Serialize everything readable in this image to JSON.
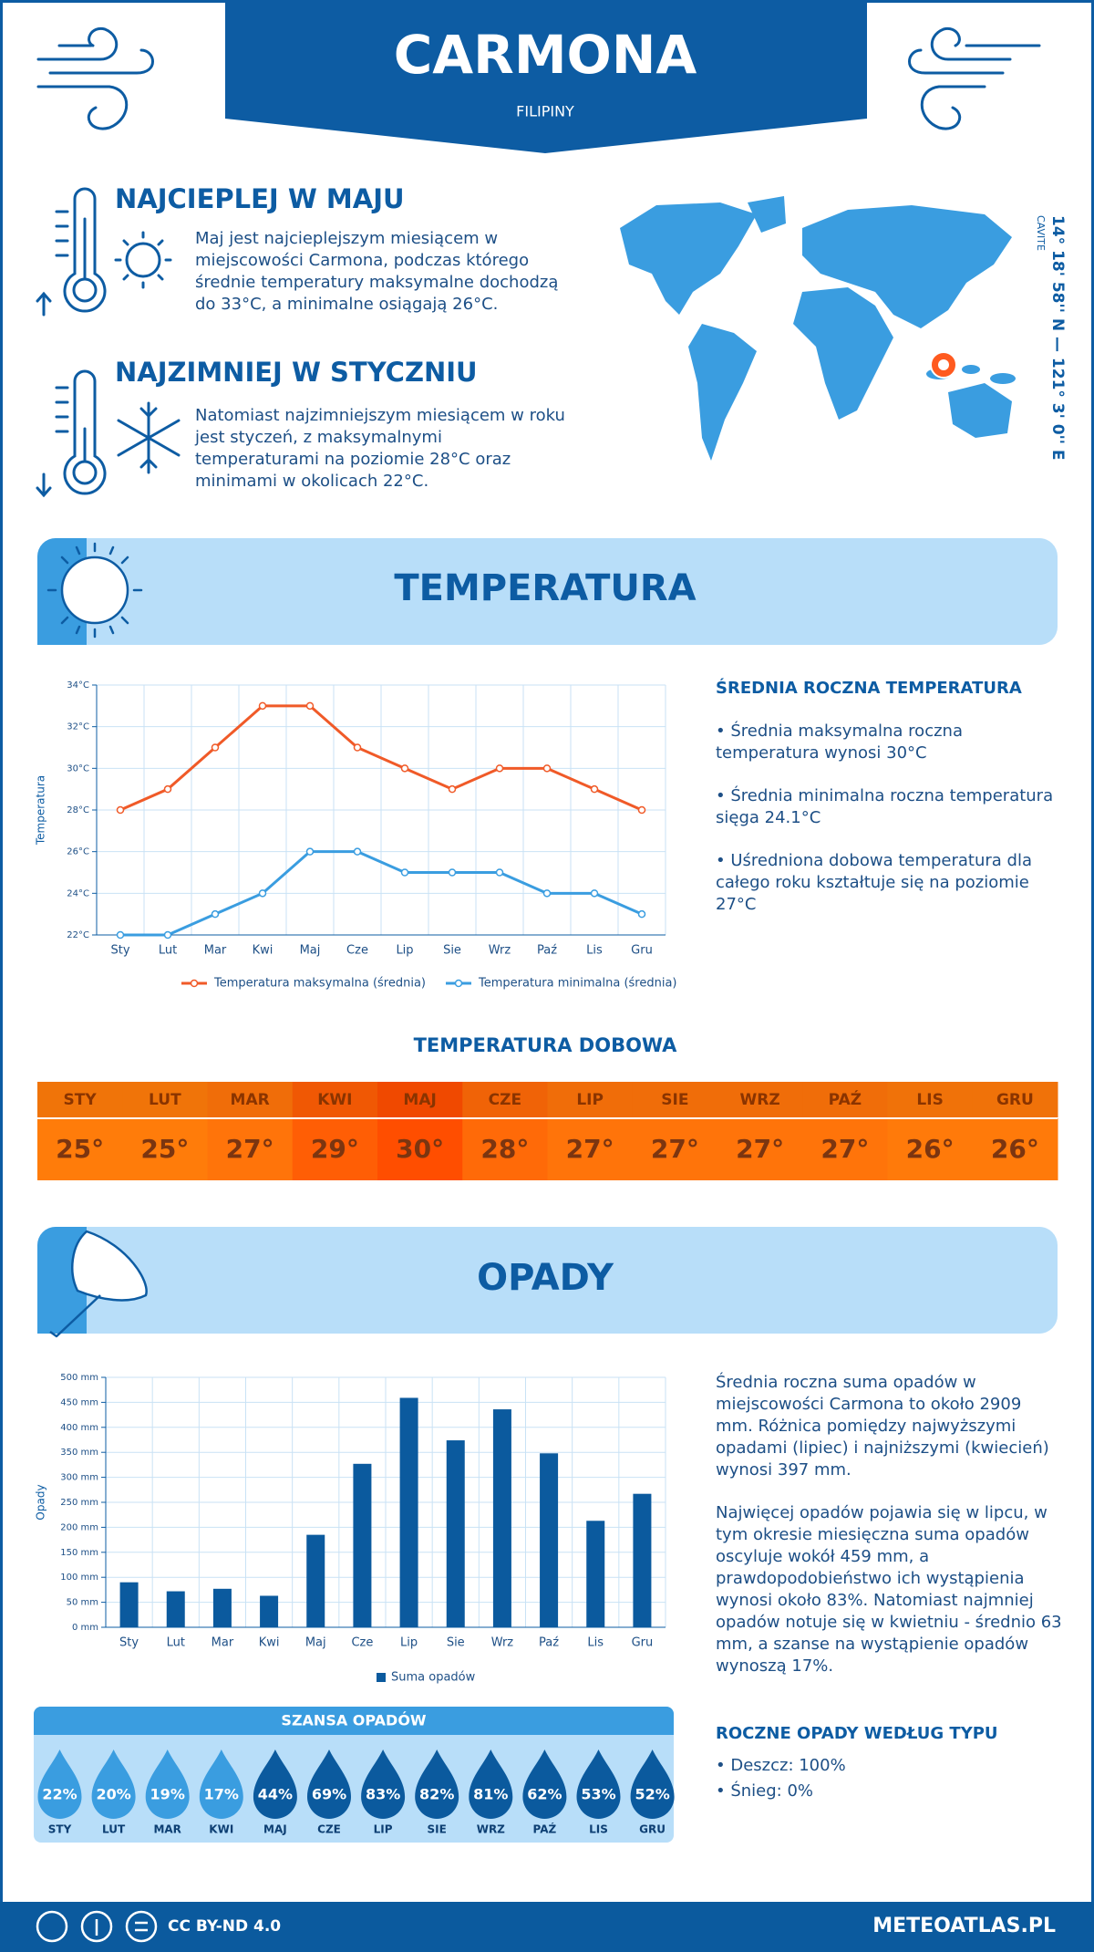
{
  "header": {
    "title": "CARMONA",
    "subtitle": "FILIPINY"
  },
  "warmest": {
    "title": "NAJCIEPLEJ W MAJU",
    "text": "Maj jest najcieplejszym miesiącem w miejscowości Carmona, podczas którego średnie temperatury maksymalne dochodzą do 33°C, a minimalne osiągają 26°C."
  },
  "coldest": {
    "title": "NAJZIMNIEJ W STYCZNIU",
    "text": "Natomiast najzimniejszym miesiącem w roku jest styczeń, z maksymalnymi temperaturami na poziomie 28°C oraz minimami w okolicach 22°C."
  },
  "location": {
    "region": "CAVITE",
    "coordinates": "14° 18' 58'' N — 121° 3' 0'' E"
  },
  "temperature_section": {
    "title": "TEMPERATURA"
  },
  "chart_data": [
    {
      "type": "line",
      "y_label": "Temperatura",
      "categories": [
        "Sty",
        "Lut",
        "Mar",
        "Kwi",
        "Maj",
        "Cze",
        "Lip",
        "Sie",
        "Wrz",
        "Paź",
        "Lis",
        "Gru"
      ],
      "series": [
        {
          "name": "Temperatura maksymalna (średnia)",
          "color": "#f05a28",
          "values": [
            28,
            29,
            31,
            33,
            33,
            31,
            30,
            29,
            30,
            30,
            29,
            28
          ]
        },
        {
          "name": "Temperatura minimalna (średnia)",
          "color": "#3a9de0",
          "values": [
            22,
            22,
            23,
            24,
            26,
            26,
            25,
            25,
            25,
            24,
            24,
            23
          ]
        }
      ],
      "ylim": [
        22,
        34
      ],
      "yticks": [
        {
          "value": 22,
          "label": "22°C"
        },
        {
          "value": 24,
          "label": "24°C"
        },
        {
          "value": 26,
          "label": "26°C"
        },
        {
          "value": 28,
          "label": "28°C"
        },
        {
          "value": 30,
          "label": "30°C"
        },
        {
          "value": 32,
          "label": "32°C"
        },
        {
          "value": 34,
          "label": "34°C"
        }
      ],
      "grid": true
    },
    {
      "type": "bar",
      "y_label": "Opady",
      "categories": [
        "Sty",
        "Lut",
        "Mar",
        "Kwi",
        "Maj",
        "Cze",
        "Lip",
        "Sie",
        "Wrz",
        "Paź",
        "Lis",
        "Gru"
      ],
      "series": [
        {
          "name": "Suma opadów",
          "color": "#0b5a9e",
          "values": [
            90,
            72,
            77,
            63,
            185,
            327,
            459,
            374,
            436,
            348,
            213,
            267
          ]
        }
      ],
      "ylim": [
        0,
        500
      ],
      "yticks": [
        {
          "value": 0,
          "label": "0 mm"
        },
        {
          "value": 50,
          "label": "50 mm"
        },
        {
          "value": 100,
          "label": "100 mm"
        },
        {
          "value": 150,
          "label": "150 mm"
        },
        {
          "value": 200,
          "label": "200 mm"
        },
        {
          "value": 250,
          "label": "250 mm"
        },
        {
          "value": 300,
          "label": "300 mm"
        },
        {
          "value": 350,
          "label": "350 mm"
        },
        {
          "value": 400,
          "label": "400 mm"
        },
        {
          "value": 450,
          "label": "450 mm"
        },
        {
          "value": 500,
          "label": "500 mm"
        }
      ],
      "grid": true
    }
  ],
  "temperature_summary": {
    "title": "ŚREDNIA ROCZNA TEMPERATURA",
    "items": [
      "• Średnia maksymalna roczna temperatura wynosi 30°C",
      "• Średnia minimalna roczna temperatura sięga 24.1°C",
      "• Uśredniona dobowa temperatura dla całego roku kształtuje się na poziomie 27°C"
    ]
  },
  "daily_temperature": {
    "title": "TEMPERATURA DOBOWA",
    "months": [
      "STY",
      "LUT",
      "MAR",
      "KWI",
      "MAJ",
      "CZE",
      "LIP",
      "SIE",
      "WRZ",
      "PAŹ",
      "LIS",
      "GRU"
    ],
    "values": [
      25,
      25,
      27,
      29,
      30,
      28,
      27,
      27,
      27,
      27,
      26,
      26
    ],
    "value_labels": [
      "25°",
      "25°",
      "27°",
      "29°",
      "30°",
      "28°",
      "27°",
      "27°",
      "27°",
      "27°",
      "26°",
      "26°"
    ],
    "colors": [
      "#ff7c0a",
      "#ff7c0a",
      "#ff740a",
      "#ff5e05",
      "#ff4e00",
      "#ff6a08",
      "#ff740a",
      "#ff740a",
      "#ff740a",
      "#ff740a",
      "#ff7a0a",
      "#ff7a0a"
    ]
  },
  "precipitation_section": {
    "title": "OPADY"
  },
  "precipitation_text": [
    "Średnia roczna suma opadów w miejscowości Carmona to około 2909 mm. Różnica pomiędzy najwyższymi opadami (lipiec) i najniższymi (kwiecień) wynosi 397 mm.",
    "Najwięcej opadów pojawia się w lipcu, w tym okresie miesięczna suma opadów oscyluje wokół 459 mm, a prawdopodobieństwo ich wystąpienia wynosi około 83%. Natomiast najmniej opadów notuje się w kwietniu - średnio 63 mm, a szanse na wystąpienie opadów wynoszą 17%."
  ],
  "precipitation_chance": {
    "title": "SZANSA OPADÓW",
    "months": [
      "STY",
      "LUT",
      "MAR",
      "KWI",
      "MAJ",
      "CZE",
      "LIP",
      "SIE",
      "WRZ",
      "PAŹ",
      "LIS",
      "GRU"
    ],
    "values": [
      22,
      20,
      19,
      17,
      44,
      69,
      83,
      82,
      81,
      62,
      53,
      52
    ],
    "value_labels": [
      "22%",
      "20%",
      "19%",
      "17%",
      "44%",
      "69%",
      "83%",
      "82%",
      "81%",
      "62%",
      "53%",
      "52%"
    ],
    "colors": [
      "#3a9de0",
      "#3a9de0",
      "#3a9de0",
      "#3a9de0",
      "#0b5a9e",
      "#0b5a9e",
      "#0b5a9e",
      "#0b5a9e",
      "#0b5a9e",
      "#0b5a9e",
      "#0b5a9e",
      "#0b5a9e"
    ]
  },
  "precipitation_types": {
    "title": "ROCZNE OPADY WEDŁUG TYPU",
    "items": [
      "• Deszcz: 100%",
      "• Śnieg: 0%"
    ]
  },
  "footer": {
    "license": "CC BY-ND 4.0",
    "site": "METEOATLAS.PL"
  }
}
